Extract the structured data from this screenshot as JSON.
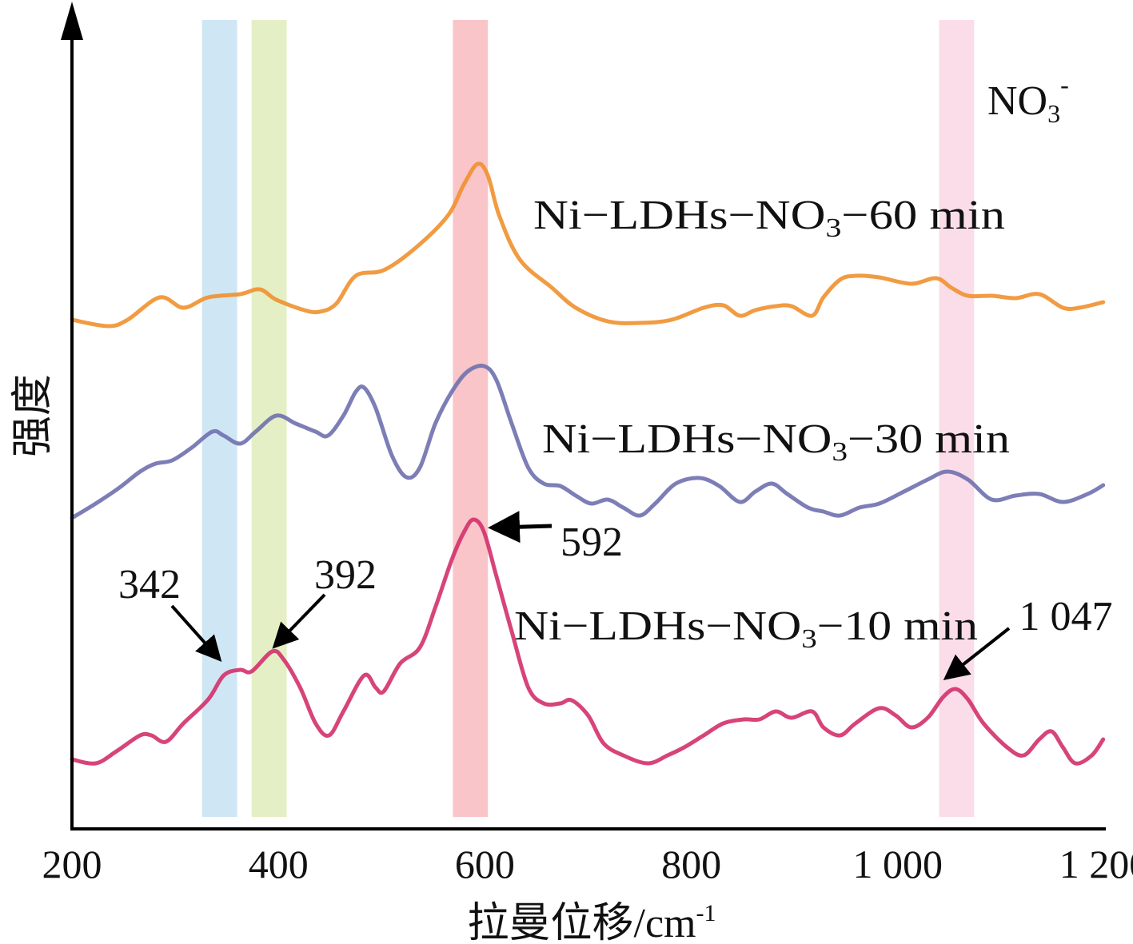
{
  "chart_data": {
    "type": "line",
    "title": "",
    "xlabel": "拉曼位移/cm",
    "xlabel_sup": "-1",
    "ylabel": "强度",
    "xlim": [
      200,
      1200
    ],
    "ylim": [
      0,
      102
    ],
    "x_ticks": [
      200,
      400,
      600,
      800,
      1000,
      1200
    ],
    "x_tick_labels": [
      "200",
      "400",
      "600",
      "800",
      "1 000",
      "1 200"
    ],
    "grid": false,
    "bands": [
      {
        "from": 326,
        "to": 360,
        "color": "#cfe7f5"
      },
      {
        "from": 374,
        "to": 408,
        "color": "#e5efc6"
      },
      {
        "from": 569,
        "to": 603,
        "color": "#f9c5c9"
      },
      {
        "from": 1040,
        "to": 1074,
        "color": "#fbdde9"
      }
    ],
    "band_label": {
      "main": "NO",
      "sub": "3",
      "sup": "-"
    },
    "series": [
      {
        "name": "Ni−LDHs−NO3−60 min",
        "label": {
          "prefix": "Ni−LDHs−NO",
          "sub": "3",
          "suffix": "−60 min"
        },
        "color": "#f0902e",
        "x": [
          200,
          235,
          254,
          285,
          308,
          332,
          363,
          382,
          398,
          425,
          440,
          456,
          475,
          502,
          533,
          564,
          580,
          593,
          603,
          614,
          634,
          665,
          688,
          719,
          750,
          781,
          812,
          831,
          847,
          862,
          882,
          897,
          917,
          928,
          944,
          959,
          982,
          1013,
          1037,
          1052,
          1068,
          1091,
          1114,
          1137,
          1160,
          1176,
          1199
        ],
        "y": [
          63.7,
          62.9,
          63.7,
          66.5,
          65.2,
          66.5,
          66.9,
          67.5,
          66.2,
          64.9,
          64.7,
          65.7,
          69.2,
          69.9,
          72.7,
          76.7,
          80.7,
          83.2,
          81.7,
          76.7,
          71.2,
          67.7,
          65.2,
          63.5,
          63.3,
          63.7,
          65.2,
          65.5,
          64.2,
          64.9,
          65.4,
          65.4,
          64.2,
          66.5,
          68.7,
          69.2,
          69.0,
          68.2,
          68.9,
          67.7,
          66.7,
          66.7,
          66.4,
          66.9,
          65.2,
          65.2,
          65.9
        ]
      },
      {
        "name": "Ni−LDHs−NO3−30 min",
        "label": {
          "prefix": "Ni−LDHs−NO",
          "sub": "3",
          "suffix": "−30 min"
        },
        "color": "#6f70ae",
        "x": [
          200,
          223,
          246,
          266,
          281,
          297,
          316,
          336,
          347,
          363,
          378,
          398,
          417,
          436,
          448,
          463,
          475,
          483,
          494,
          510,
          524,
          537,
          552,
          568,
          583,
          599,
          611,
          626,
          642,
          657,
          673,
          688,
          703,
          719,
          734,
          750,
          765,
          785,
          808,
          827,
          847,
          862,
          878,
          893,
          913,
          928,
          944,
          963,
          982,
          1006,
          1029,
          1048,
          1068,
          1091,
          1114,
          1137,
          1160,
          1184,
          1199
        ],
        "y": [
          38.9,
          40.7,
          42.7,
          44.7,
          45.7,
          46.1,
          47.7,
          49.7,
          49.2,
          48.2,
          49.7,
          51.7,
          50.7,
          49.7,
          49.2,
          51.7,
          54.7,
          55.2,
          52.7,
          46.7,
          44.0,
          45.2,
          50.7,
          54.7,
          57.2,
          57.9,
          56.2,
          50.7,
          45.2,
          43.2,
          42.9,
          41.7,
          40.7,
          41.2,
          40.2,
          39.2,
          40.7,
          43.2,
          43.9,
          42.9,
          40.9,
          42.2,
          43.2,
          41.9,
          40.2,
          39.7,
          39.2,
          40.2,
          40.7,
          42.2,
          43.7,
          44.7,
          43.7,
          41.2,
          41.7,
          41.9,
          40.9,
          41.9,
          43.0
        ]
      },
      {
        "name": "Ni−LDHs−NO3−10 min",
        "label": {
          "prefix": "Ni−LDHs−NO",
          "sub": "3",
          "suffix": "−10 min"
        },
        "color": "#d3306a",
        "x": [
          200,
          223,
          243,
          266,
          277,
          291,
          308,
          332,
          347,
          363,
          374,
          394,
          405,
          421,
          436,
          449,
          463,
          483,
          494,
          502,
          518,
          537,
          552,
          568,
          580,
          589,
          599,
          611,
          626,
          642,
          657,
          673,
          684,
          700,
          715,
          734,
          758,
          777,
          793,
          812,
          831,
          851,
          866,
          882,
          897,
          917,
          928,
          944,
          959,
          982,
          998,
          1013,
          1029,
          1044,
          1056,
          1068,
          1083,
          1106,
          1122,
          1137,
          1149,
          1160,
          1172,
          1188,
          1199
        ],
        "y": [
          8.7,
          8.2,
          9.7,
          11.7,
          11.7,
          10.9,
          13.2,
          16.2,
          19.2,
          19.9,
          19.7,
          22.2,
          21.2,
          17.7,
          13.2,
          11.7,
          14.7,
          19.2,
          17.7,
          17.2,
          20.7,
          22.7,
          27.7,
          33.7,
          37.2,
          38.7,
          37.2,
          31.7,
          24.7,
          17.7,
          15.7,
          15.7,
          16.1,
          14.2,
          10.7,
          9.2,
          8.2,
          9.2,
          10.2,
          11.7,
          13.2,
          13.7,
          13.7,
          14.7,
          13.9,
          14.7,
          12.7,
          11.7,
          13.2,
          15.1,
          14.2,
          12.7,
          13.9,
          16.5,
          17.5,
          16.2,
          13.2,
          10.2,
          9.2,
          11.2,
          12.2,
          10.2,
          8.2,
          9.2,
          11.2
        ]
      }
    ],
    "annotations": [
      {
        "label": "342",
        "x": 342
      },
      {
        "label": "392",
        "x": 392
      },
      {
        "label": "592",
        "x": 592
      },
      {
        "label": "1 047",
        "x": 1047
      }
    ]
  }
}
